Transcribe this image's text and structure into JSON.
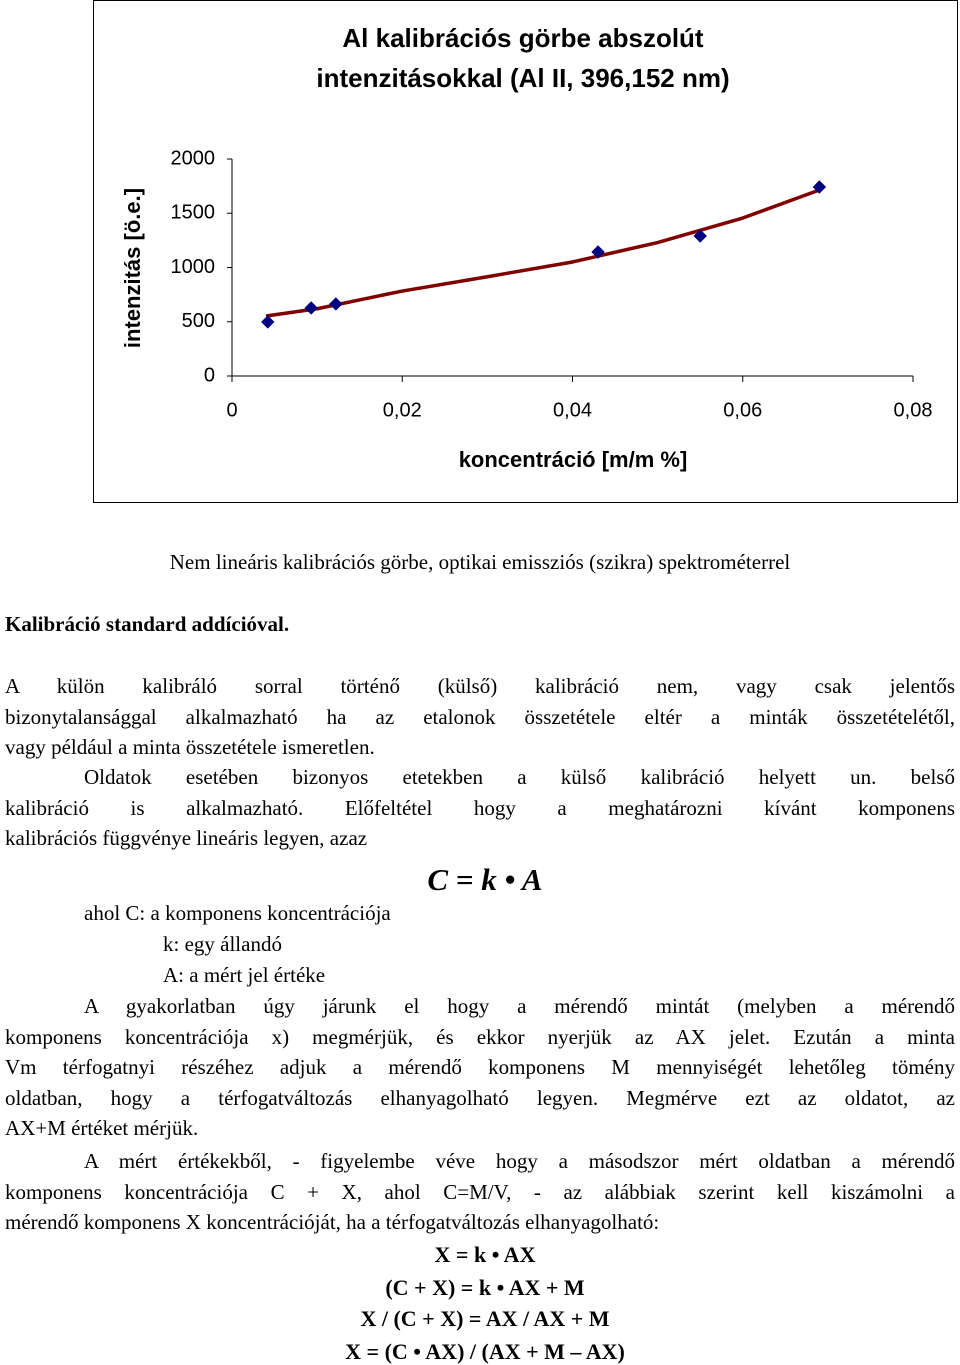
{
  "chart_data": {
    "type": "scatter",
    "title": [
      "Al kalibrációs görbe abszolút",
      "intenzitásokkal (Al II, 396,152 nm)"
    ],
    "xlabel": "koncentráció [m/m %]",
    "ylabel": "intenzitás [ö.e.]",
    "xlim": [
      0,
      0.08
    ],
    "xticks": [
      0,
      {
        "value": 0.02,
        "label": "0,02"
      },
      {
        "value": 0.04,
        "label": "0,04"
      },
      {
        "value": 0.06,
        "label": "0,06"
      },
      {
        "value": 0.08,
        "label": "0,08"
      }
    ],
    "ylim": [
      0,
      2000
    ],
    "yticks": [
      0,
      500,
      1000,
      1500,
      2000
    ],
    "grid": false,
    "series": [
      {
        "style": "markers",
        "color": "#000080",
        "x": [
          0.0042,
          0.0093,
          0.0122,
          0.043,
          0.055,
          0.069
        ],
        "values": [
          498,
          627,
          664,
          1143,
          1290,
          1742
        ]
      },
      {
        "style": "line",
        "color": "#800000",
        "x": [
          0.004,
          0.01,
          0.02,
          0.03,
          0.04,
          0.05,
          0.06,
          0.069
        ],
        "values": [
          553,
          620,
          783,
          915,
          1051,
          1230,
          1456,
          1714
        ]
      }
    ]
  },
  "caption": "Nem lineáris kalibrációs görbe, optikai emissziós (szikra) spektrométerrel",
  "heading": "Kalibráció standard addícióval.",
  "paragraphs": [
    [
      "A külön kalibráló sorral történő (külső) kalibráció nem, vagy csak jelentős",
      "bizonytalansággal alkalmazható ha az etalonok összetétele eltér a minták összetételétől,",
      "vagy például a minta összetétele ismeretlen."
    ],
    [
      "Oldatok esetében bizonyos etetekben a külső kalibráció helyett un. belső",
      "kalibráció is alkalmazható. Előfeltétel hogy a meghatározni kívánt komponens",
      "kalibrációs függvénye lineáris legyen, azaz"
    ],
    [
      "A gyakorlatban úgy járunk el hogy a mérendő mintát (melyben a mérendő",
      "komponens koncentrációja x) megmérjük, és ekkor nyerjük az AX jelet. Ezután a minta",
      "Vm térfogatnyi részéhez adjuk a mérendő komponens M mennyiségét lehetőleg tömény",
      "oldatban, hogy a térfogatváltozás elhanyagolható legyen. Megmérve ezt az oldatot, az",
      "AX+M értéket mérjük."
    ],
    [
      "A mért értékekből, - figyelembe véve hogy a másodszor mért oldatban a mérendő",
      "komponens koncentrációja C + X, ahol C=M/V, - az alábbiak szerint kell kiszámolni a",
      "mérendő komponens X koncentrációját, ha a térfogatváltozás elhanyagolható:"
    ]
  ],
  "formula": "C = k • A",
  "definitions": [
    "ahol C: a komponens koncentrációja",
    "k: egy állandó",
    "A: a mért jel értéke"
  ],
  "equations": [
    "X = k • AX",
    "(C + X) = k • AX + M",
    "X / (C + X) = AX / AX + M",
    "X = (C • AX) / (AX + M – AX)"
  ]
}
